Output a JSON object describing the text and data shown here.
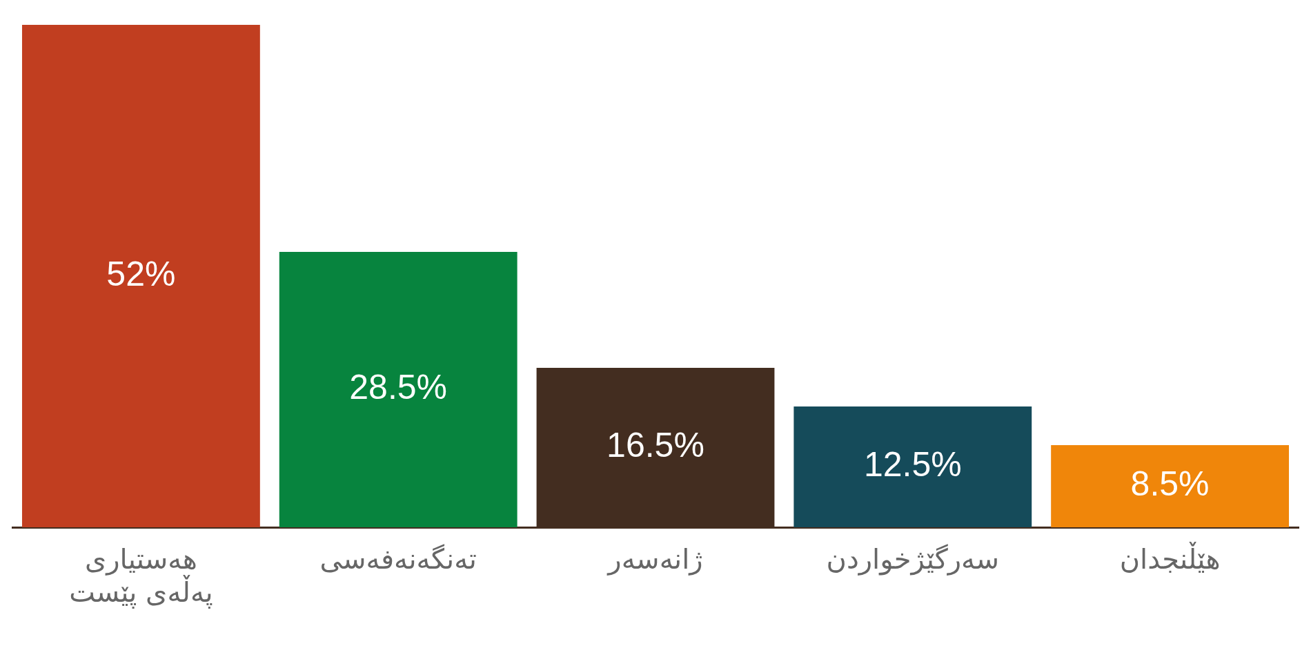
{
  "chart_data": {
    "type": "bar",
    "categories": [
      "هەستیاری پەڵەی پێست",
      "تەنگەنەفەسی",
      "ژانەسەر",
      "سەرگێژخواردن",
      "هێڵنجدان"
    ],
    "values": [
      52,
      28.5,
      16.5,
      12.5,
      8.5
    ],
    "value_labels": [
      "52%",
      "28.5%",
      "16.5%",
      "12.5%",
      "8.5%"
    ],
    "colors": [
      "#c13e20",
      "#07843e",
      "#432d20",
      "#154b5a",
      "#f0860a"
    ],
    "grid": false,
    "legend": false
  }
}
